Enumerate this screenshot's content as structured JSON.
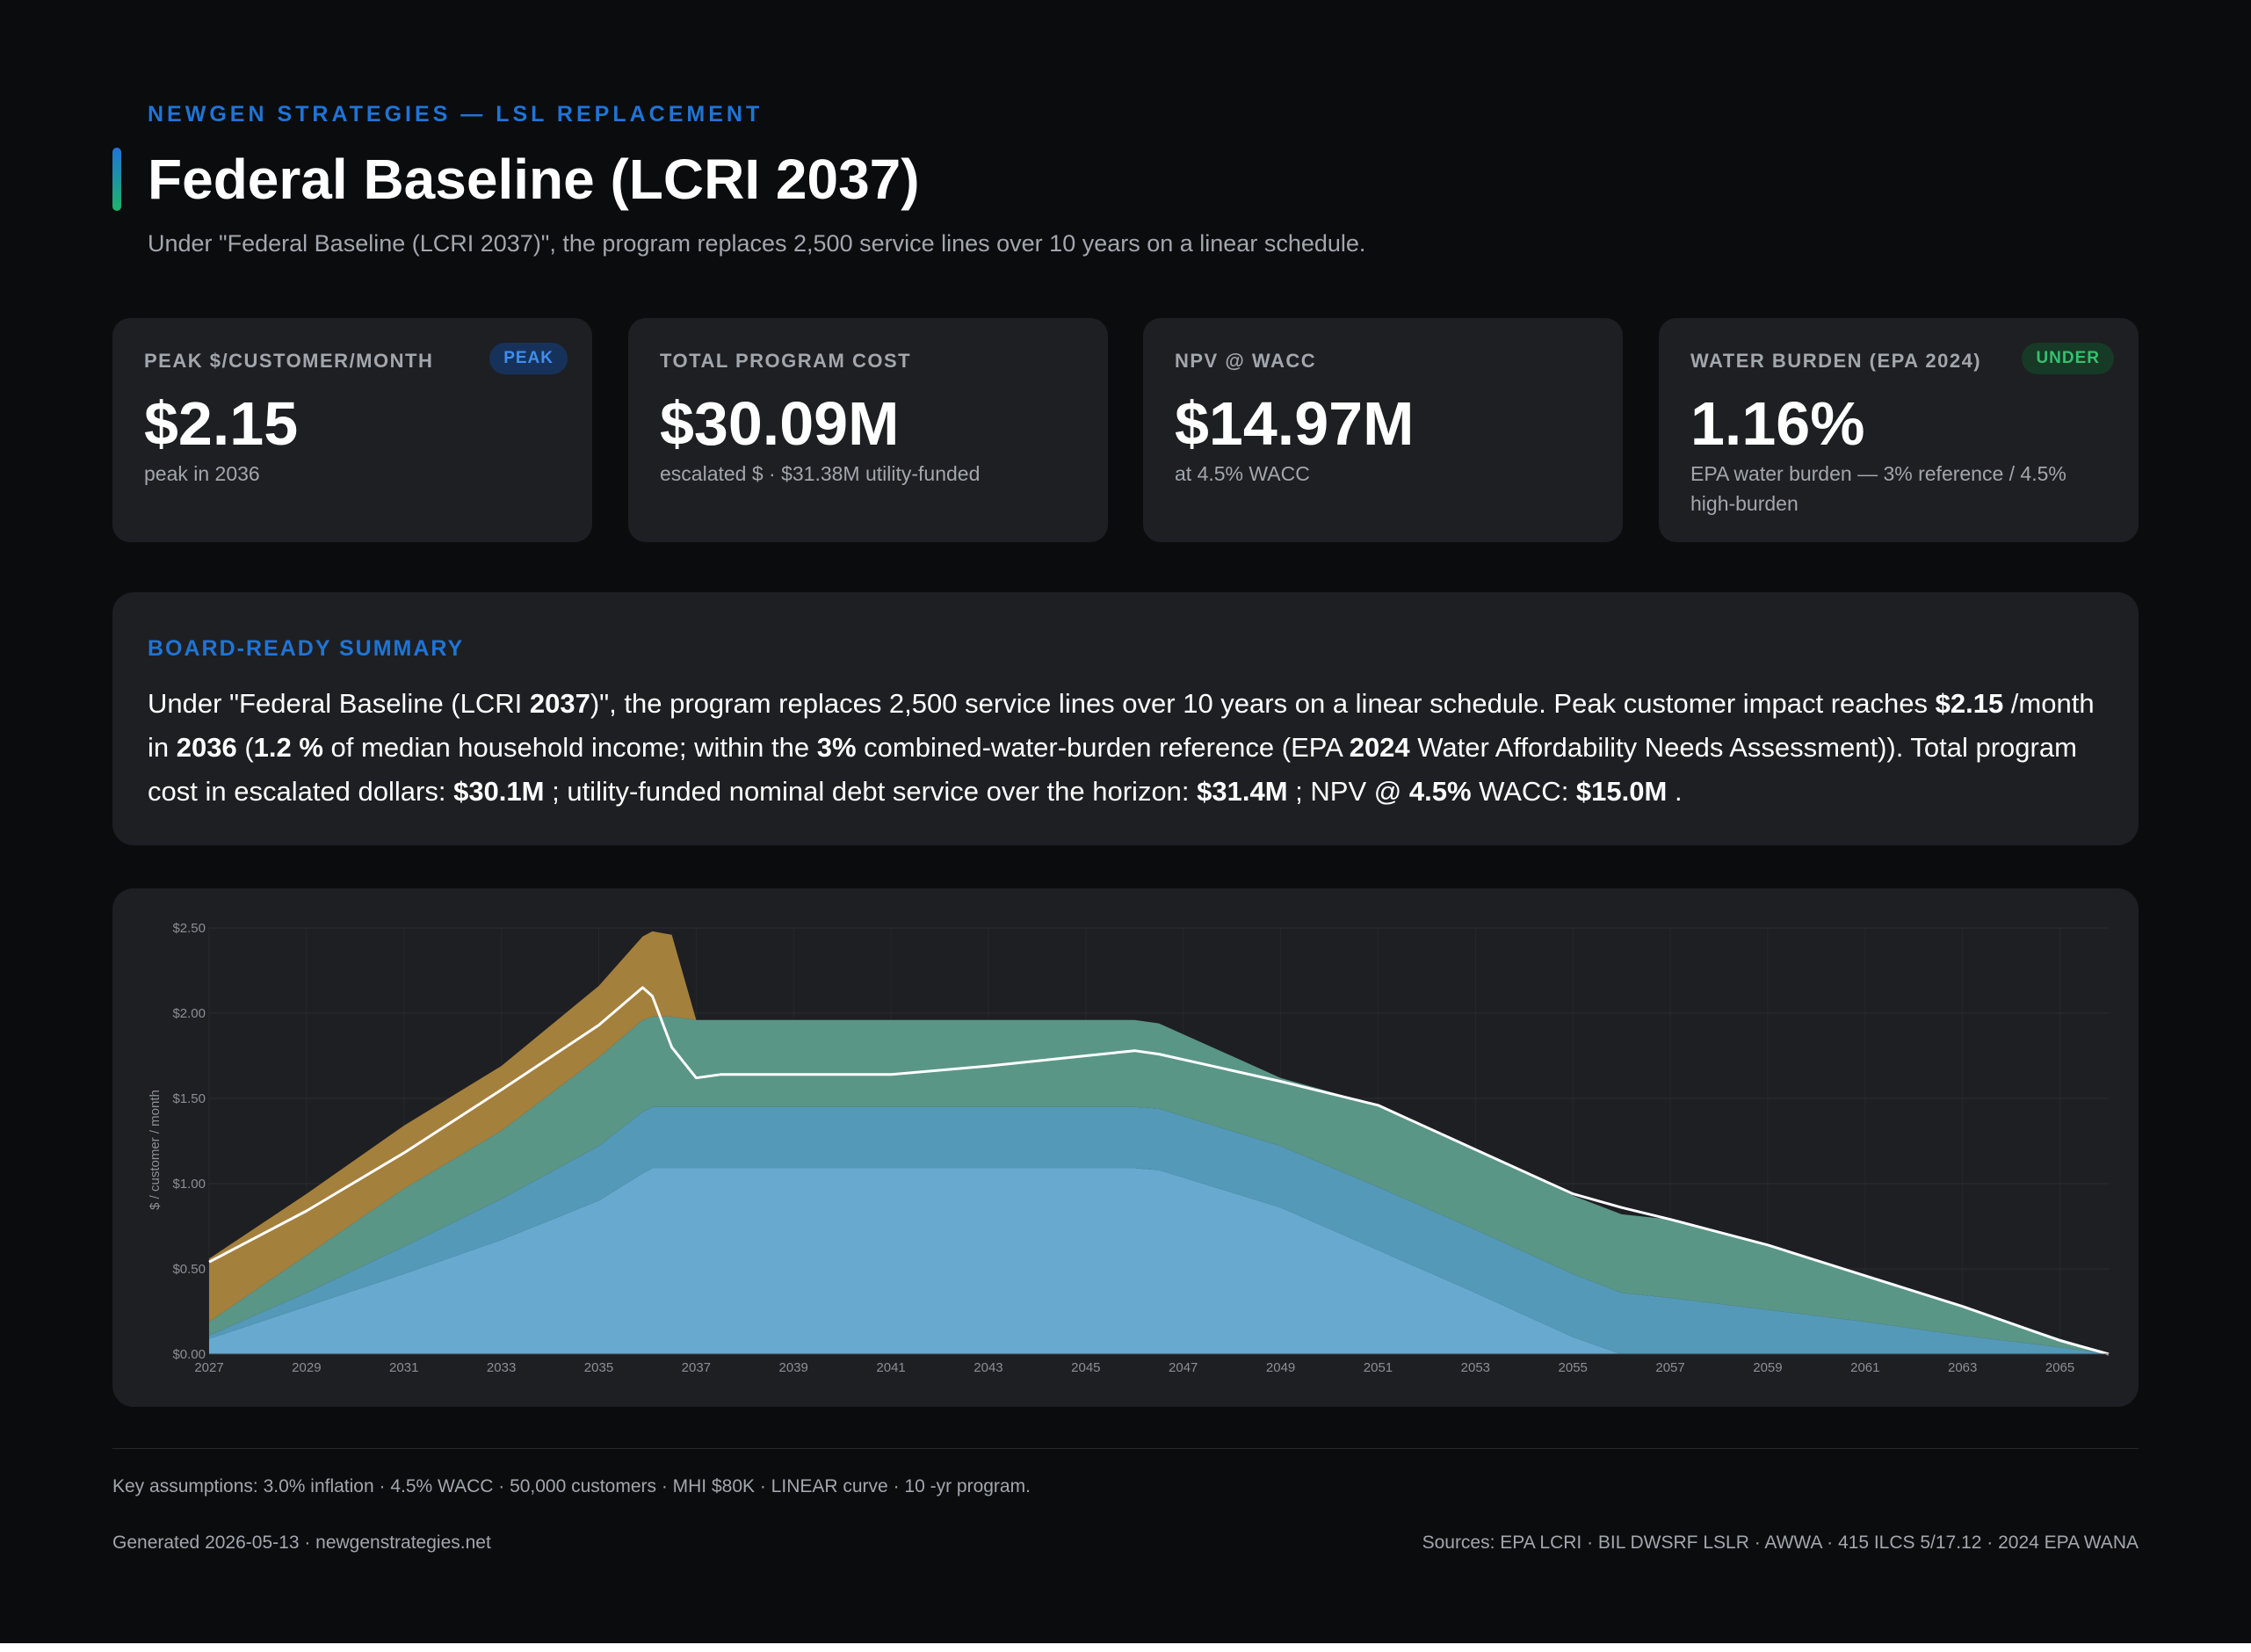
{
  "header": {
    "eyebrow": "NEWGEN STRATEGIES — LSL REPLACEMENT",
    "title": "Federal Baseline (LCRI 2037)",
    "subtitle": "Under \"Federal Baseline (LCRI 2037)\", the program replaces 2,500 service lines over 10  years on a linear schedule."
  },
  "kpis": [
    {
      "label": "PEAK $/CUSTOMER/MONTH",
      "value": "$2.15",
      "sub": "peak in 2036",
      "badge": "PEAK"
    },
    {
      "label": "TOTAL PROGRAM COST",
      "value": "$30.09M",
      "sub": "escalated $ · $31.38M  utility-funded"
    },
    {
      "label": "NPV @ WACC",
      "value": "$14.97M",
      "sub": "at 4.5% WACC"
    },
    {
      "label": "WATER BURDEN (EPA 2024)",
      "value": "1.16%",
      "sub": "EPA water burden — 3% reference / 4.5% high-burden",
      "badge": "UNDER"
    }
  ],
  "summary": {
    "label": "BOARD-READY SUMMARY",
    "t1": "Under \"Federal Baseline (LCRI ",
    "b1": "2037",
    "t2": ")\", the program replaces 2,500 service lines over 10  years on a linear schedule. Peak customer impact reaches ",
    "b2": "$2.15",
    "t3": " /month in ",
    "b3": "2036",
    "t4": " (",
    "b4": "1.2 %",
    "t5": " of median household income; within the ",
    "b5": "3%",
    "t6": " combined-water-burden reference (EPA ",
    "b6": "2024",
    "t7": " Water Affordability Needs Assessment)). Total program cost in escalated dollars: ",
    "b7": "$30.1M",
    "t8": " ; utility-funded nominal debt service over the horizon: ",
    "b8": "$31.4M",
    "t9": " ; NPV @ ",
    "b9": "4.5%",
    "t10": " WACC: ",
    "b10": "$15.0M",
    "t11": " ."
  },
  "chart_data": {
    "type": "area",
    "stacked": true,
    "ylabel": "$ / customer / month",
    "ylim": [
      0,
      2.5
    ],
    "xlim": [
      2027,
      2066
    ],
    "x_ticks": [
      "2027",
      "2029",
      "2031",
      "2033",
      "2035",
      "2037",
      "2039",
      "2041",
      "2043",
      "2045",
      "2047",
      "2049",
      "2051",
      "2053",
      "2055",
      "2057",
      "2059",
      "2061",
      "2063",
      "2065"
    ],
    "y_ticks": [
      "$0.00",
      "$0.50",
      "$1.00",
      "$1.50",
      "$2.00",
      "$2.50"
    ],
    "colors": [
      "#67a9cf",
      "#5499b8",
      "#5a9686",
      "#a4803d"
    ],
    "line_color": "#ffffff",
    "x": [
      2027,
      2029,
      2031,
      2033,
      2035,
      2035.9,
      2036.1,
      2036.5,
      2037,
      2037.5,
      2039,
      2041,
      2043,
      2045,
      2046,
      2046.5,
      2049,
      2051,
      2053,
      2055,
      2056,
      2057,
      2059,
      2061,
      2063,
      2065,
      2066
    ],
    "series": [
      {
        "values": [
          0.09,
          0.28,
          0.47,
          0.67,
          0.9,
          1.06,
          1.09,
          1.09,
          1.09,
          1.09,
          1.09,
          1.09,
          1.09,
          1.09,
          1.09,
          1.08,
          0.86,
          0.61,
          0.36,
          0.1,
          0.0,
          0.0,
          0.0,
          0.0,
          0.0,
          0.0,
          0.0
        ]
      },
      {
        "values": [
          0.02,
          0.08,
          0.16,
          0.24,
          0.32,
          0.36,
          0.36,
          0.36,
          0.36,
          0.36,
          0.36,
          0.36,
          0.36,
          0.36,
          0.36,
          0.36,
          0.36,
          0.37,
          0.37,
          0.37,
          0.36,
          0.33,
          0.26,
          0.19,
          0.11,
          0.04,
          0.0
        ]
      },
      {
        "values": [
          0.08,
          0.22,
          0.34,
          0.4,
          0.52,
          0.54,
          0.53,
          0.53,
          0.51,
          0.51,
          0.51,
          0.51,
          0.51,
          0.51,
          0.51,
          0.5,
          0.4,
          0.48,
          0.47,
          0.46,
          0.46,
          0.46,
          0.38,
          0.27,
          0.17,
          0.05,
          0.0
        ]
      },
      {
        "values": [
          0.37,
          0.36,
          0.37,
          0.38,
          0.42,
          0.49,
          0.5,
          0.48,
          0.0,
          0.0,
          0.0,
          0.0,
          0.0,
          0.0,
          0.0,
          0.0,
          0.0,
          0.0,
          0.0,
          0.0,
          0.0,
          0.0,
          0.0,
          0.0,
          0.0,
          0.0,
          0.0
        ]
      }
    ],
    "line": [
      0.54,
      0.84,
      1.18,
      1.55,
      1.93,
      2.15,
      2.1,
      1.8,
      1.62,
      1.64,
      1.64,
      1.64,
      1.69,
      1.75,
      1.78,
      1.76,
      1.6,
      1.46,
      1.2,
      0.94,
      0.86,
      0.79,
      0.64,
      0.46,
      0.28,
      0.08,
      0.0
    ]
  },
  "footer": {
    "assumptions": "Key assumptions: 3.0% inflation · 4.5% WACC · 50,000 customers · MHI $80K · LINEAR curve · 10 -yr program.",
    "generated": "Generated 2026-05-13  · newgenstrategies.net",
    "sources": "Sources: EPA LCRI · BIL DWSRF LSLR · AWWA · 415  ILCS 5/17.12  · 2024 EPA WANA"
  }
}
